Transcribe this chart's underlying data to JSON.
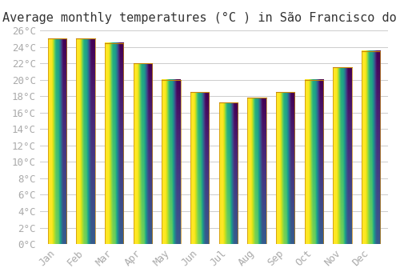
{
  "title": "Average monthly temperatures (°C ) in São Francisco do Sul",
  "months": [
    "Jan",
    "Feb",
    "Mar",
    "Apr",
    "May",
    "Jun",
    "Jul",
    "Aug",
    "Sep",
    "Oct",
    "Nov",
    "Dec"
  ],
  "temperatures": [
    25.0,
    25.0,
    24.5,
    22.0,
    20.0,
    18.5,
    17.2,
    17.8,
    18.5,
    20.0,
    21.5,
    23.5
  ],
  "bar_color_bottom": "#FFD060",
  "bar_color_top": "#FFA020",
  "bar_edge_color": "#C8860A",
  "background_color": "#FFFFFF",
  "grid_color": "#CCCCCC",
  "tick_label_color": "#AAAAAA",
  "title_color": "#333333",
  "ylim": [
    0,
    26
  ],
  "yticks": [
    0,
    2,
    4,
    6,
    8,
    10,
    12,
    14,
    16,
    18,
    20,
    22,
    24,
    26
  ],
  "title_fontsize": 11,
  "tick_fontsize": 9,
  "font_family": "monospace"
}
